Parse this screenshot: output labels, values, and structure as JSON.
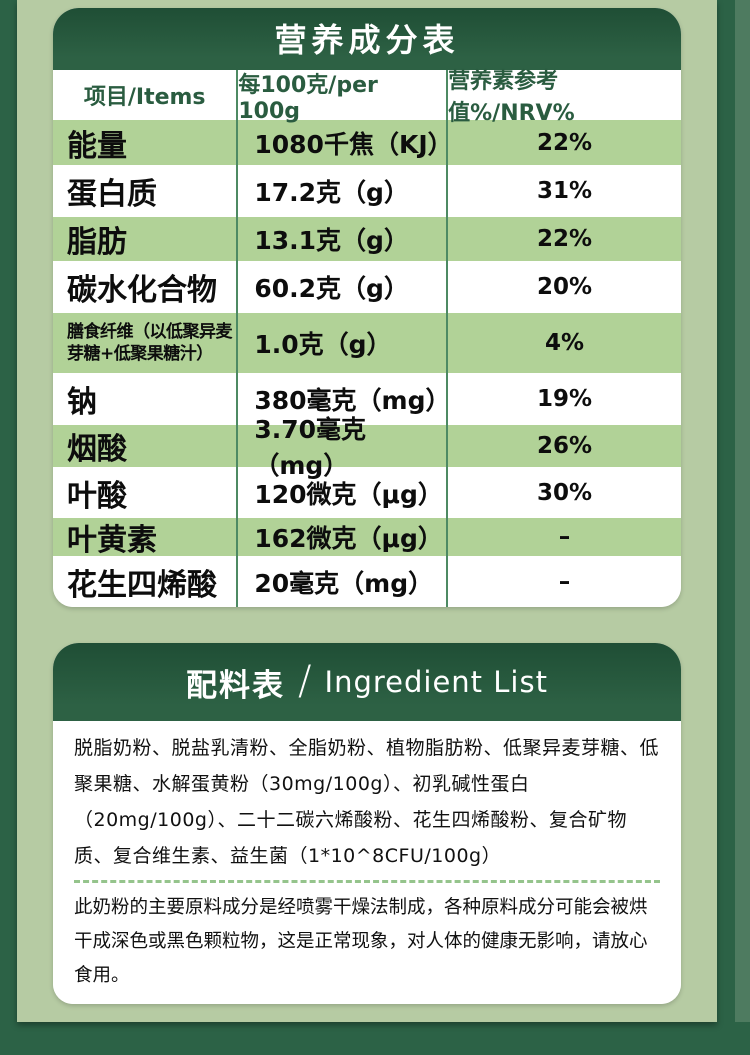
{
  "theme": {
    "page_background": "#2c6246",
    "panel_background": "#b6cba3",
    "banner_green": "#27593d",
    "row_green": "#b1d297",
    "header_text_green": "#2a5c40",
    "divider_green": "#4d8a63",
    "dashed_line_green": "#95c48c",
    "right_edge_strip": "#4e7b60"
  },
  "nutrition_table": {
    "title": "营养成分表",
    "columns": [
      "项目/Items",
      "每100克/per 100g",
      "营养素参考值%/NRV%"
    ],
    "rows": [
      {
        "item": "能量",
        "amount": "1080千焦（KJ）",
        "nrv": "22%"
      },
      {
        "item": "蛋白质",
        "amount": "17.2克（g）",
        "nrv": "31%"
      },
      {
        "item": "脂肪",
        "amount": "13.1克（g）",
        "nrv": "22%"
      },
      {
        "item": "碳水化合物",
        "amount": "60.2克（g）",
        "nrv": "20%"
      },
      {
        "item": "膳食纤维（以低聚异麦芽糖+低聚果糖汁）",
        "amount": "1.0克（g）",
        "nrv": "4%"
      },
      {
        "item": "钠",
        "amount": "380毫克（mg）",
        "nrv": "19%"
      },
      {
        "item": "烟酸",
        "amount": "3.70毫克（mg）",
        "nrv": "26%"
      },
      {
        "item": "叶酸",
        "amount": "120微克（μg）",
        "nrv": "30%"
      },
      {
        "item": "叶黄素",
        "amount": "162微克（μg）",
        "nrv": "–"
      },
      {
        "item": "花生四烯酸",
        "amount": "20毫克（mg）",
        "nrv": "–"
      }
    ]
  },
  "ingredient_section": {
    "title_zh": "配料表",
    "title_slash": "/",
    "title_en": "Ingredient List",
    "ingredient_list": "脱脂奶粉、脱盐乳清粉、全脂奶粉、植物脂肪粉、低聚异麦芽糖、低聚果糖、水解蛋黄粉（30mg/100g）、初乳碱性蛋白（20mg/100g）、二十二碳六烯酸粉、花生四烯酸粉、复合矿物质、复合维生素、益生菌（1*10^8CFU/100g）",
    "note": "此奶粉的主要原料成分是经喷雾干燥法制成，各种原料成分可能会被烘干成深色或黑色颗粒物，这是正常现象，对人体的健康无影响，请放心食用。"
  }
}
